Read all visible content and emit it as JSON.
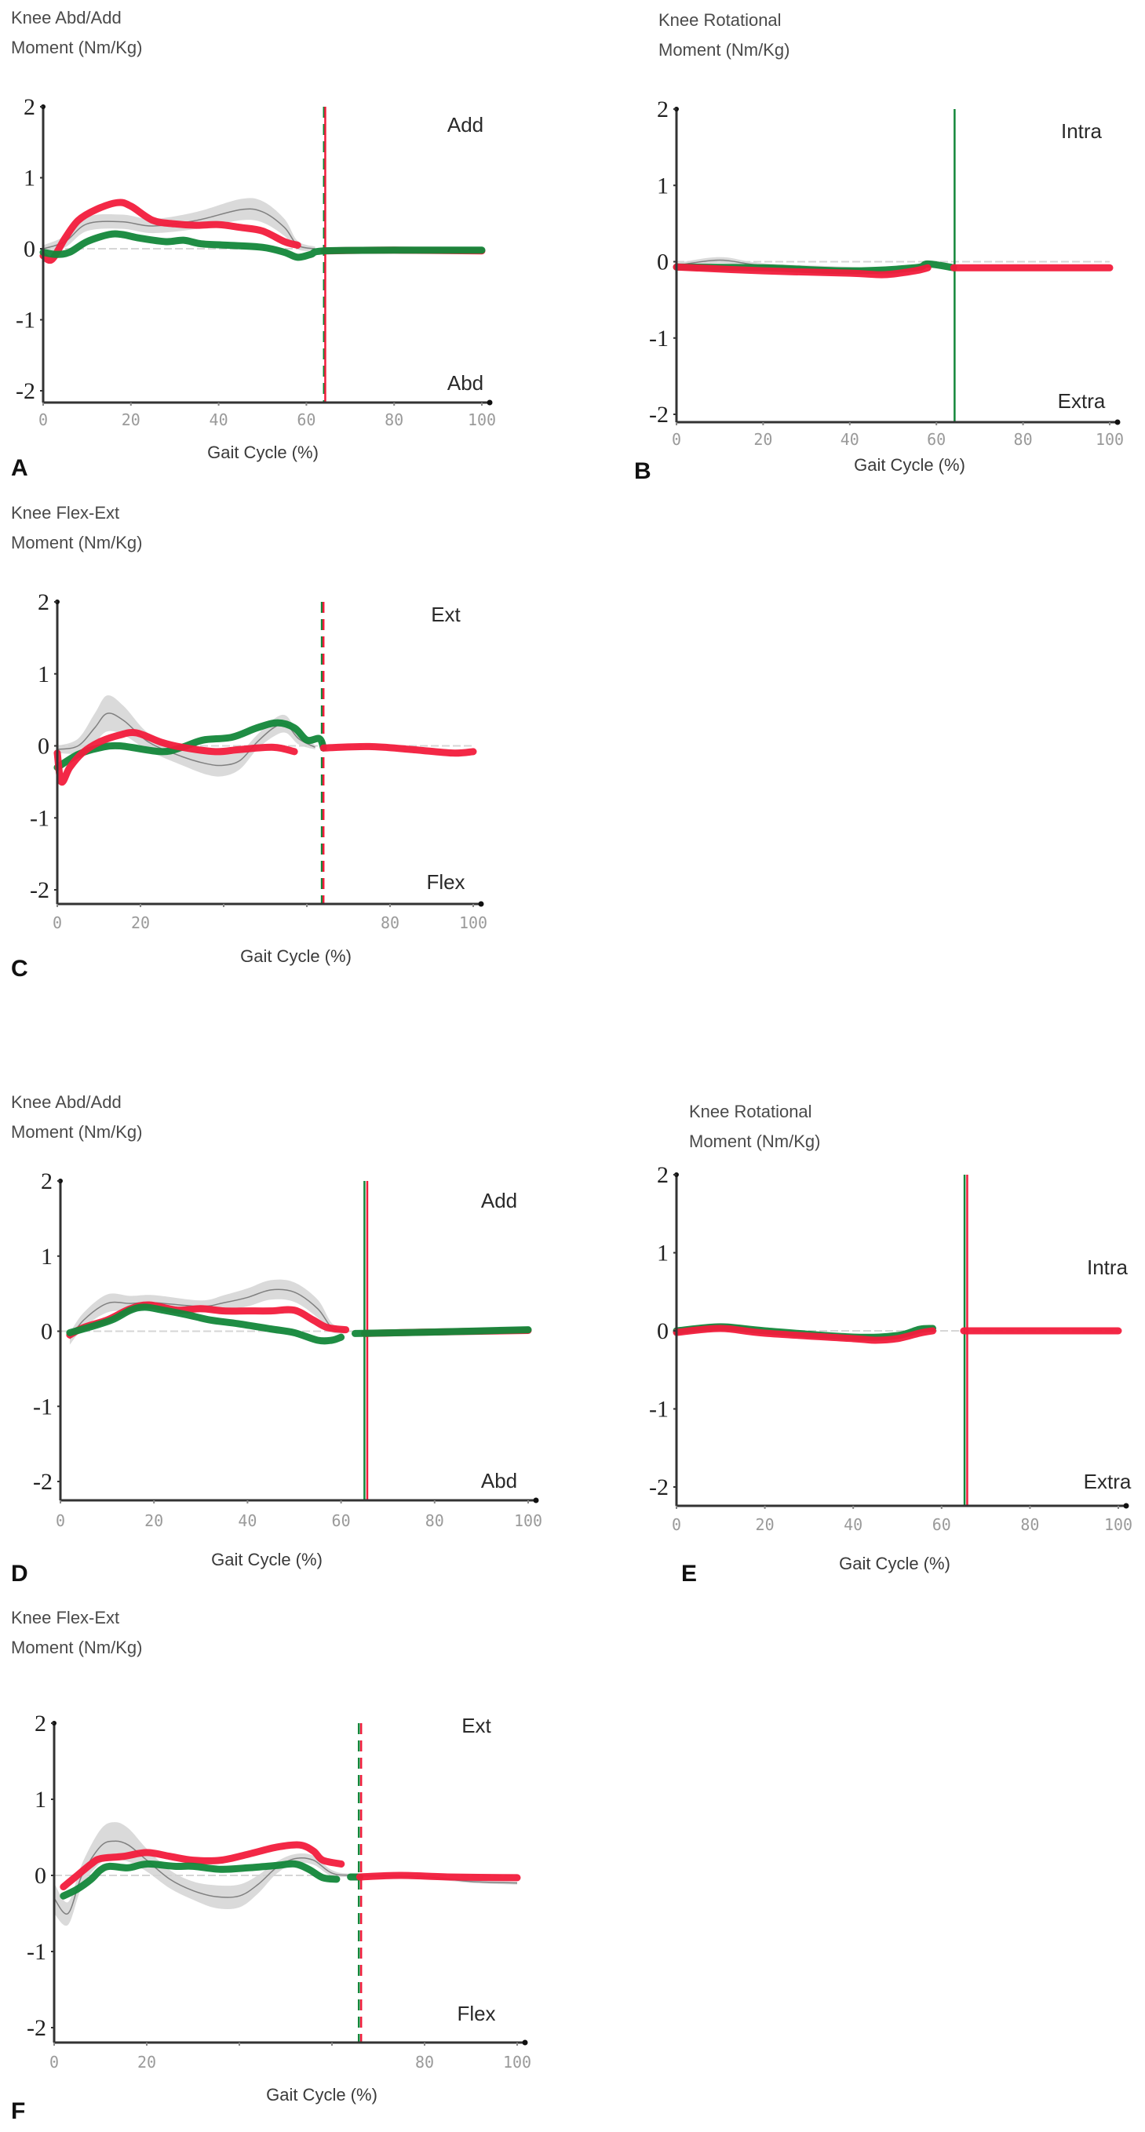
{
  "colors": {
    "red": "#f21c3c",
    "green": "#13873a",
    "band": "#d4d4d4",
    "mean": "#808080",
    "axis": "#333333"
  },
  "chart_data": [
    {
      "id": "A",
      "type": "line",
      "letter": "A",
      "title": [
        "Knee Abd/Add",
        "Moment (Nm/Kg)"
      ],
      "xlabel": "Gait Cycle (%)",
      "xlim": [
        0,
        100
      ],
      "ylim": [
        -2,
        2
      ],
      "yticks": [
        "2",
        "1",
        "0",
        "-1",
        "-2"
      ],
      "yticks_values": [
        2,
        1,
        0,
        -1,
        -2
      ],
      "xticks": [
        "0",
        "20",
        "40",
        "60",
        "80",
        "100"
      ],
      "xticks_values": [
        0,
        20,
        40,
        60,
        80,
        100
      ],
      "upper_label": "Add",
      "lower_label": "Abd",
      "toe_off": [
        {
          "x": 64,
          "color": "green",
          "style": "dashed"
        },
        {
          "x": 64.3,
          "color": "red",
          "style": "solid"
        }
      ],
      "normative": {
        "x": [
          0,
          5,
          10,
          18,
          25,
          35,
          45,
          50,
          55,
          58,
          62
        ],
        "mean": [
          0,
          0.1,
          0.35,
          0.38,
          0.32,
          0.4,
          0.55,
          0.52,
          0.3,
          0.05,
          0
        ],
        "sd": [
          0.05,
          0.08,
          0.1,
          0.1,
          0.1,
          0.12,
          0.15,
          0.15,
          0.12,
          0.06,
          0.03
        ]
      },
      "series": [
        {
          "name": "red",
          "x": [
            0,
            2,
            5,
            8,
            12,
            17,
            20,
            25,
            30,
            35,
            40,
            45,
            50,
            55,
            58
          ],
          "y": [
            -0.1,
            -0.15,
            0.15,
            0.4,
            0.55,
            0.65,
            0.6,
            0.4,
            0.35,
            0.33,
            0.34,
            0.3,
            0.25,
            0.1,
            0.05
          ]
        },
        {
          "name": "red",
          "x": [
            64,
            80,
            100
          ],
          "y": [
            -0.03,
            -0.02,
            -0.03
          ]
        },
        {
          "name": "green",
          "x": [
            0,
            3,
            6,
            10,
            15,
            18,
            22,
            28,
            32,
            36,
            42,
            50,
            55,
            58,
            61,
            64,
            80,
            100
          ],
          "y": [
            -0.05,
            -0.08,
            -0.05,
            0.1,
            0.2,
            0.2,
            0.15,
            0.1,
            0.12,
            0.07,
            0.05,
            0.02,
            -0.05,
            -0.12,
            -0.08,
            -0.03,
            -0.02,
            -0.02
          ]
        }
      ]
    },
    {
      "id": "B",
      "type": "line",
      "letter": "B",
      "title": [
        "Knee Rotational",
        "Moment (Nm/Kg)"
      ],
      "xlabel": "Gait Cycle (%)",
      "xlim": [
        0,
        100
      ],
      "ylim": [
        -2,
        2
      ],
      "yticks": [
        "2",
        "1",
        "0",
        "-1",
        "-2"
      ],
      "yticks_values": [
        2,
        1,
        0,
        -1,
        -2
      ],
      "xticks": [
        "0",
        "20",
        "40",
        "60",
        "80",
        "100"
      ],
      "xticks_values": [
        0,
        20,
        40,
        60,
        80,
        100
      ],
      "upper_label": "Intra",
      "lower_label": "Extra",
      "toe_off": [
        {
          "x": 64.2,
          "color": "green",
          "style": "solid"
        }
      ],
      "normative": {
        "x": [
          0,
          10,
          20,
          40,
          50,
          58
        ],
        "mean": [
          -0.05,
          0.02,
          -0.05,
          -0.1,
          -0.15,
          -0.05
        ],
        "sd": [
          0.03,
          0.04,
          0.03,
          0.03,
          0.04,
          0.03
        ]
      },
      "series": [
        {
          "name": "green",
          "x": [
            0,
            20,
            40,
            55,
            58,
            64
          ],
          "y": [
            -0.07,
            -0.08,
            -0.12,
            -0.08,
            -0.03,
            -0.08
          ]
        },
        {
          "name": "red",
          "x": [
            0,
            20,
            40,
            48,
            55,
            58
          ],
          "y": [
            -0.07,
            -0.12,
            -0.15,
            -0.17,
            -0.12,
            -0.08
          ]
        },
        {
          "name": "red",
          "x": [
            64,
            80,
            100
          ],
          "y": [
            -0.08,
            -0.08,
            -0.08
          ]
        }
      ]
    },
    {
      "id": "C",
      "type": "line",
      "letter": "C",
      "title": [
        "Knee Flex-Ext",
        "Moment (Nm/Kg)"
      ],
      "xlabel": "Gait Cycle (%)",
      "xlim": [
        0,
        100
      ],
      "ylim": [
        -2,
        2
      ],
      "yticks": [
        "2",
        "1",
        "0",
        "-1",
        "-2"
      ],
      "yticks_values": [
        2,
        1,
        0,
        -1,
        -2
      ],
      "xticks": [
        "0",
        "20",
        "80",
        "100"
      ],
      "xticks_values": [
        0,
        20,
        80,
        100
      ],
      "upper_label": "Ext",
      "lower_label": "Flex",
      "toe_off": [
        {
          "x": 63.6,
          "color": "green",
          "style": "dashed"
        },
        {
          "x": 64,
          "color": "red",
          "style": "dashed"
        }
      ],
      "normative": {
        "x": [
          0,
          5,
          9,
          12,
          16,
          22,
          30,
          36,
          40,
          44,
          48,
          52,
          55,
          58,
          62
        ],
        "mean": [
          -0.05,
          0,
          0.25,
          0.45,
          0.35,
          0.05,
          -0.15,
          -0.25,
          -0.27,
          -0.2,
          0.05,
          0.25,
          0.3,
          0.1,
          -0.02
        ],
        "sd": [
          0.05,
          0.1,
          0.2,
          0.25,
          0.2,
          0.12,
          0.12,
          0.15,
          0.15,
          0.12,
          0.1,
          0.12,
          0.12,
          0.08,
          0.03
        ]
      },
      "series": [
        {
          "name": "green",
          "x": [
            0,
            5,
            10,
            15,
            25,
            30,
            35,
            42,
            48,
            53,
            57,
            60,
            63,
            64
          ],
          "y": [
            -0.3,
            -0.12,
            -0.03,
            0,
            -0.08,
            -0.02,
            0.08,
            0.12,
            0.25,
            0.32,
            0.25,
            0.08,
            0.1,
            -0.03
          ]
        },
        {
          "name": "red",
          "x": [
            0,
            1,
            3,
            6,
            10,
            15,
            19,
            25,
            30,
            38,
            44,
            52,
            57
          ],
          "y": [
            -0.1,
            -0.5,
            -0.3,
            -0.1,
            0.05,
            0.15,
            0.18,
            0.05,
            -0.02,
            -0.08,
            -0.05,
            -0.02,
            -0.08
          ]
        },
        {
          "name": "red",
          "x": [
            64,
            75,
            85,
            95,
            100
          ],
          "y": [
            -0.03,
            -0.01,
            -0.05,
            -0.1,
            -0.08
          ]
        }
      ]
    },
    {
      "id": "D",
      "type": "line",
      "letter": "D",
      "title": [
        "Knee Abd/Add",
        "Moment (Nm/Kg)"
      ],
      "xlabel": "Gait Cycle (%)",
      "xlim": [
        0,
        100
      ],
      "ylim": [
        -2,
        2
      ],
      "yticks": [
        "2",
        "1",
        "0",
        "-1",
        "-2"
      ],
      "yticks_values": [
        2,
        1,
        0,
        -1,
        -2
      ],
      "xticks": [
        "0",
        "20",
        "40",
        "60",
        "80",
        "100"
      ],
      "xticks_values": [
        0,
        20,
        40,
        60,
        80,
        100
      ],
      "upper_label": "Add",
      "lower_label": "Abd",
      "toe_off": [
        {
          "x": 65,
          "color": "green",
          "style": "solid"
        },
        {
          "x": 65.6,
          "color": "red",
          "style": "solid"
        }
      ],
      "normative": {
        "x": [
          2,
          5,
          10,
          15,
          20,
          30,
          35,
          40,
          45,
          50,
          55,
          58,
          61
        ],
        "mean": [
          -0.1,
          0.15,
          0.37,
          0.37,
          0.38,
          0.33,
          0.38,
          0.45,
          0.55,
          0.52,
          0.3,
          0.05,
          0
        ],
        "sd": [
          0.08,
          0.1,
          0.12,
          0.1,
          0.1,
          0.08,
          0.1,
          0.12,
          0.13,
          0.13,
          0.12,
          0.06,
          0.03
        ]
      },
      "series": [
        {
          "name": "red",
          "x": [
            2,
            5,
            10,
            15,
            19,
            25,
            30,
            35,
            40,
            45,
            50,
            54,
            57,
            61
          ],
          "y": [
            -0.05,
            0.05,
            0.15,
            0.3,
            0.35,
            0.28,
            0.3,
            0.27,
            0.27,
            0.27,
            0.28,
            0.15,
            0.05,
            0.02
          ]
        },
        {
          "name": "red",
          "x": [
            65,
            80,
            100
          ],
          "y": [
            -0.03,
            -0.01,
            0.01
          ]
        },
        {
          "name": "green",
          "x": [
            2,
            6,
            11,
            15,
            18,
            22,
            27,
            32,
            38,
            45,
            50,
            55,
            58,
            60
          ],
          "y": [
            -0.02,
            0.05,
            0.15,
            0.28,
            0.32,
            0.28,
            0.22,
            0.15,
            0.1,
            0.03,
            -0.02,
            -0.12,
            -0.12,
            -0.08
          ]
        },
        {
          "name": "green",
          "x": [
            63,
            80,
            100
          ],
          "y": [
            -0.03,
            -0.01,
            0.02
          ]
        }
      ]
    },
    {
      "id": "E",
      "type": "line",
      "letter": "E",
      "title": [
        "Knee Rotational",
        "Moment (Nm/Kg)"
      ],
      "xlabel": "Gait Cycle (%)",
      "xlim": [
        0,
        100
      ],
      "ylim": [
        -2,
        2
      ],
      "yticks": [
        "2",
        "1",
        "0",
        "-1",
        "-2"
      ],
      "yticks_values": [
        2,
        1,
        0,
        -1,
        -2
      ],
      "xticks": [
        "0",
        "20",
        "40",
        "60",
        "80",
        "100"
      ],
      "xticks_values": [
        0,
        20,
        40,
        60,
        80,
        100
      ],
      "upper_label": "Intra",
      "lower_label": "Extra",
      "toe_off": [
        {
          "x": 65.2,
          "color": "green",
          "style": "solid"
        },
        {
          "x": 65.8,
          "color": "red",
          "style": "solid"
        }
      ],
      "normative": {
        "x": [
          0,
          10,
          20,
          40,
          50,
          58
        ],
        "mean": [
          0,
          0.06,
          0,
          -0.08,
          -0.08,
          0.02
        ],
        "sd": [
          0.03,
          0.04,
          0.03,
          0.03,
          0.03,
          0.03
        ]
      },
      "series": [
        {
          "name": "green",
          "x": [
            0,
            10,
            20,
            40,
            50,
            55,
            58
          ],
          "y": [
            0,
            0.05,
            0,
            -0.08,
            -0.06,
            0.02,
            0.03
          ]
        },
        {
          "name": "red",
          "x": [
            0,
            10,
            20,
            40,
            45,
            50,
            55,
            58
          ],
          "y": [
            -0.02,
            0.03,
            -0.03,
            -0.1,
            -0.12,
            -0.1,
            -0.03,
            0
          ]
        },
        {
          "name": "red",
          "x": [
            65,
            80,
            100
          ],
          "y": [
            0,
            0,
            0
          ]
        }
      ]
    },
    {
      "id": "F",
      "type": "line",
      "letter": "F",
      "title": [
        "Knee Flex-Ext",
        "Moment (Nm/Kg)"
      ],
      "xlabel": "Gait Cycle (%)",
      "xlim": [
        0,
        100
      ],
      "ylim": [
        -2,
        2
      ],
      "yticks": [
        "2",
        "1",
        "0",
        "-1",
        "-2"
      ],
      "yticks_values": [
        2,
        1,
        0,
        -1,
        -2
      ],
      "xticks": [
        "0",
        "20",
        "80",
        "100"
      ],
      "xticks_values": [
        0,
        20,
        80,
        100
      ],
      "upper_label": "Ext",
      "lower_label": "Flex",
      "toe_off": [
        {
          "x": 65.8,
          "color": "green",
          "style": "dashed"
        },
        {
          "x": 66.3,
          "color": "red",
          "style": "dashed"
        }
      ],
      "normative": {
        "x": [
          0,
          3,
          6,
          10,
          13,
          16,
          20,
          25,
          30,
          35,
          40,
          44,
          48,
          52,
          56,
          60,
          65,
          80,
          90,
          100
        ],
        "mean": [
          -0.3,
          -0.5,
          0,
          0.38,
          0.45,
          0.4,
          0.2,
          -0.05,
          -0.2,
          -0.28,
          -0.27,
          -0.12,
          0.1,
          0.22,
          0.2,
          0.03,
          0,
          -0.02,
          -0.08,
          -0.1
        ],
        "sd": [
          0.2,
          0.15,
          0.15,
          0.22,
          0.25,
          0.22,
          0.15,
          0.12,
          0.12,
          0.15,
          0.15,
          0.12,
          0.08,
          0.06,
          0.06,
          0.04,
          0.02,
          0.02,
          0.02,
          0.02
        ]
      },
      "series": [
        {
          "name": "red",
          "x": [
            2,
            5,
            8,
            10,
            15,
            20,
            25,
            30,
            36,
            42,
            48,
            53,
            56,
            58,
            62
          ],
          "y": [
            -0.15,
            0,
            0.15,
            0.22,
            0.25,
            0.3,
            0.25,
            0.2,
            0.2,
            0.28,
            0.37,
            0.4,
            0.32,
            0.2,
            0.15
          ]
        },
        {
          "name": "green",
          "x": [
            2,
            5,
            8,
            10,
            12,
            16,
            20,
            26,
            30,
            36,
            42,
            48,
            52,
            55,
            58,
            61
          ],
          "y": [
            -0.27,
            -0.18,
            -0.05,
            0.07,
            0.12,
            0.1,
            0.15,
            0.12,
            0.12,
            0.08,
            0.1,
            0.13,
            0.15,
            0.08,
            -0.03,
            -0.05
          ]
        },
        {
          "name": "green",
          "x": [
            64,
            66
          ],
          "y": [
            -0.02,
            -0.02
          ]
        },
        {
          "name": "red",
          "x": [
            66,
            75,
            85,
            100
          ],
          "y": [
            -0.02,
            0,
            -0.02,
            -0.03
          ]
        }
      ]
    }
  ]
}
